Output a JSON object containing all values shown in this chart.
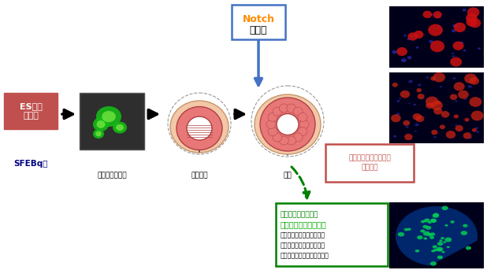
{
  "bg_color": "#ffffff",
  "figsize": [
    6.18,
    3.43
  ],
  "dpi": 100,
  "es_cell_label": "ES細胞\n凝集塊",
  "es_cell_bg": "#c0504d",
  "sfebq_label": "SFEBq法",
  "sfebq_color": "#000080",
  "pituitary_label": "下垂体前駆細胞",
  "rathke_label": "ラトケ嚢",
  "mature_label": "成熟",
  "notch_label1": "Notch",
  "notch_label2": "阻害剤",
  "notch_box_color": "#4472c4",
  "notch_text_color1": "#ff8c00",
  "notch_text_color2": "#000000",
  "acth_label": "副腎皮質刺激ホルモン\n産生細胞",
  "acth_box_color": "#c0504d",
  "bottom_box_title": "【別の培養条件で】",
  "bottom_box_green": "成長ホルモン産生細胞",
  "bottom_box_lines": [
    "乳汁分泌ホルモン産生細胞",
    "性腺刺激ホルモン産生細胞",
    "甲状腺刺激ホルモン産生細胞"
  ],
  "bottom_box_border": "#008000"
}
